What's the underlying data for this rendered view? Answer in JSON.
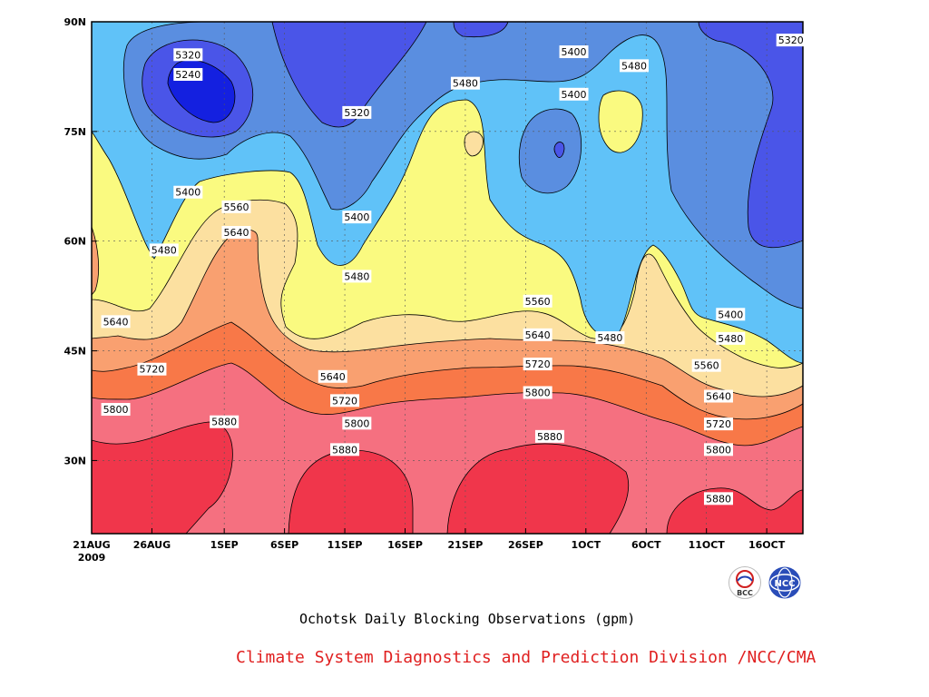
{
  "figure": {
    "caption": "Ochotsk Daily Blocking Observations (gpm)",
    "credit": "Climate System Diagnostics and Prediction Division /NCC/CMA",
    "logos": [
      {
        "text": "BCC"
      },
      {
        "text": "NCC"
      }
    ]
  },
  "chart_data": {
    "type": "heatmap",
    "title": "Ochotsk Daily Blocking Observations (gpm)",
    "xlabel": "",
    "ylabel": "",
    "x_ticks": [
      "21AUG",
      "26AUG",
      "1SEP",
      "6SEP",
      "11SEP",
      "16SEP",
      "21SEP",
      "26SEP",
      "1OCT",
      "6OCT",
      "11OCT",
      "16OCT"
    ],
    "x_tick_sub": "2009",
    "x_range": [
      "2009-08-21",
      "2009-10-19"
    ],
    "y_ticks": [
      "30N",
      "45N",
      "60N",
      "75N",
      "90N"
    ],
    "y_range": [
      20,
      90
    ],
    "grid": true,
    "levels": [
      5240,
      5320,
      5400,
      5480,
      5560,
      5640,
      5720,
      5800,
      5880
    ],
    "level_colors": [
      "#1420e0",
      "#4a55e8",
      "#5a8ee0",
      "#60c2f8",
      "#fafa80",
      "#fce0a0",
      "#f9a070",
      "#f87848",
      "#f57080",
      "#f0364b"
    ],
    "contour_labels": [
      {
        "text": "5320",
        "date": "2009-08-29",
        "lat": 85.5
      },
      {
        "text": "5240",
        "date": "2009-08-29",
        "lat": 82.8
      },
      {
        "text": "5400",
        "date": "2009-08-29",
        "lat": 66.7
      },
      {
        "text": "5480",
        "date": "2009-08-27",
        "lat": 58.8
      },
      {
        "text": "5560",
        "date": "2009-09-02",
        "lat": 64.7
      },
      {
        "text": "5640",
        "date": "2009-09-02",
        "lat": 61.2
      },
      {
        "text": "5320",
        "date": "2009-09-12",
        "lat": 77.6
      },
      {
        "text": "5400",
        "date": "2009-09-12",
        "lat": 63.3
      },
      {
        "text": "5480",
        "date": "2009-09-12",
        "lat": 55.2
      },
      {
        "text": "5640",
        "date": "2009-08-23",
        "lat": 49.0
      },
      {
        "text": "5720",
        "date": "2009-08-26",
        "lat": 42.5
      },
      {
        "text": "5800",
        "date": "2009-08-23",
        "lat": 37.0
      },
      {
        "text": "5880",
        "date": "2009-09-01",
        "lat": 35.3
      },
      {
        "text": "5640",
        "date": "2009-09-10",
        "lat": 41.5
      },
      {
        "text": "5720",
        "date": "2009-09-11",
        "lat": 38.2
      },
      {
        "text": "5800",
        "date": "2009-09-12",
        "lat": 35.1
      },
      {
        "text": "5880",
        "date": "2009-09-11",
        "lat": 31.5
      },
      {
        "text": "5480",
        "date": "2009-09-21",
        "lat": 81.6
      },
      {
        "text": "5400",
        "date": "2009-09-30",
        "lat": 85.9
      },
      {
        "text": "5400",
        "date": "2009-09-30",
        "lat": 80.1
      },
      {
        "text": "5480",
        "date": "2009-10-05",
        "lat": 84.0
      },
      {
        "text": "5320",
        "date": "2009-10-18",
        "lat": 87.5
      },
      {
        "text": "5560",
        "date": "2009-09-27",
        "lat": 51.8
      },
      {
        "text": "5640",
        "date": "2009-09-27",
        "lat": 47.2
      },
      {
        "text": "5720",
        "date": "2009-09-27",
        "lat": 43.2
      },
      {
        "text": "5800",
        "date": "2009-09-27",
        "lat": 39.3
      },
      {
        "text": "5880",
        "date": "2009-09-28",
        "lat": 33.3
      },
      {
        "text": "5480",
        "date": "2009-10-03",
        "lat": 46.8
      },
      {
        "text": "5400",
        "date": "2009-10-13",
        "lat": 50.0
      },
      {
        "text": "5480",
        "date": "2009-10-13",
        "lat": 46.7
      },
      {
        "text": "5560",
        "date": "2009-10-11",
        "lat": 43.0
      },
      {
        "text": "5640",
        "date": "2009-10-12",
        "lat": 38.8
      },
      {
        "text": "5720",
        "date": "2009-10-12",
        "lat": 35.0
      },
      {
        "text": "5800",
        "date": "2009-10-12",
        "lat": 31.5
      },
      {
        "text": "5880",
        "date": "2009-10-12",
        "lat": 24.8
      }
    ]
  }
}
